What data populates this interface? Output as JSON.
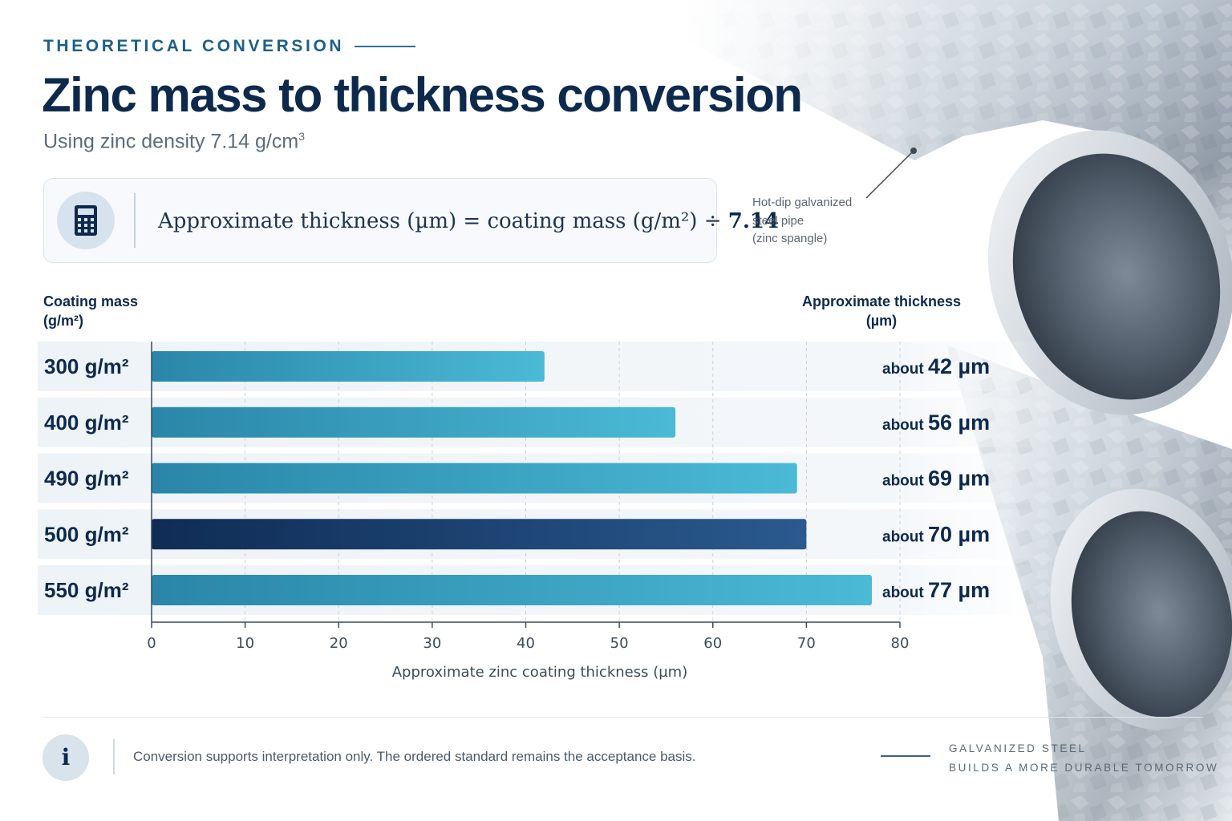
{
  "header": {
    "eyebrow": "THEORETICAL CONVERSION",
    "title": "Zinc mass to thickness conversion",
    "subtitle": "Using zinc density 7.14 g/cm",
    "subtitle_sup": "3"
  },
  "formula": {
    "icon": "calculator-icon",
    "text": "Approximate thickness (µm) = coating mass (g/m²) ÷ ",
    "divisor": "7.14"
  },
  "callout": {
    "lines": [
      "Hot-dip galvanized",
      "steel pipe",
      "(zinc spangle)"
    ]
  },
  "chart_data": {
    "type": "bar",
    "orientation": "horizontal",
    "categories": [
      "300 g/m²",
      "400 g/m²",
      "490 g/m²",
      "500 g/m²",
      "550 g/m²"
    ],
    "values": [
      42,
      56,
      69,
      70,
      77
    ],
    "value_labels": [
      {
        "prefix": "about",
        "value": "42 µm"
      },
      {
        "prefix": "about",
        "value": "56 µm"
      },
      {
        "prefix": "about",
        "value": "69 µm"
      },
      {
        "prefix": "about",
        "value": "70 µm"
      },
      {
        "prefix": "about",
        "value": "77 µm"
      }
    ],
    "highlight_index": 3,
    "left_header": [
      "Coating mass",
      "(g/m²)"
    ],
    "right_header": [
      "Approximate thickness",
      "(µm)"
    ],
    "xlabel": "Approximate zinc coating thickness (µm)",
    "xlim": [
      0,
      80
    ],
    "xticks": [
      0,
      10,
      20,
      30,
      40,
      50,
      60,
      70,
      80
    ],
    "grid": "vertical dashed",
    "colors": {
      "bar": [
        "#2a86a8",
        "#4bbad6"
      ],
      "bar_highlight": [
        "#0f2c55",
        "#2a5a8f"
      ],
      "row_band": "#f1f5f8",
      "text": "#0d2a4d"
    }
  },
  "footer": {
    "icon": "info-icon",
    "icon_glyph": "i",
    "note": "Conversion supports interpretation only. The ordered standard remains the acceptance basis.",
    "tag_lines": [
      "GALVANIZED STEEL",
      "BUILDS A MORE DURABLE TOMORROW"
    ]
  }
}
